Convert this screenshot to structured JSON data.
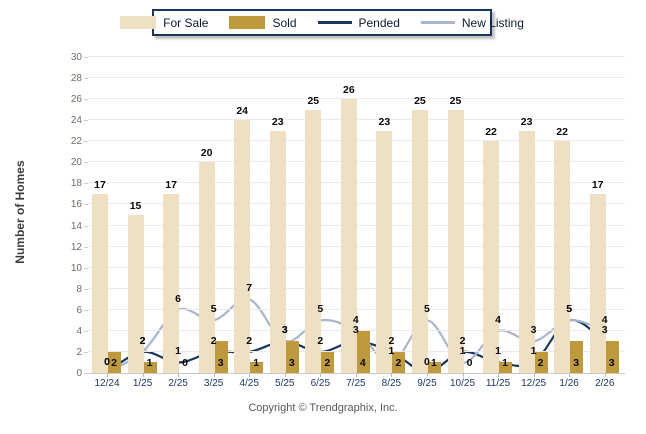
{
  "legend": {
    "items": [
      {
        "label": "For Sale",
        "type": "bar",
        "color": "#EFE0C3"
      },
      {
        "label": "Sold",
        "type": "bar",
        "color": "#BE9A3D"
      },
      {
        "label": "Pended",
        "type": "line",
        "color": "#17375E"
      },
      {
        "label": "New Listing",
        "type": "line",
        "color": "#A9B5CD"
      }
    ]
  },
  "y_axis": {
    "title": "Number of Homes",
    "ticks": [
      0,
      2,
      4,
      6,
      8,
      10,
      12,
      14,
      16,
      18,
      20,
      22,
      24,
      26,
      28,
      30
    ],
    "min": 0,
    "max": 30
  },
  "footer": {
    "copyright": "Copyright © Trendgraphix, Inc."
  },
  "chart_data": {
    "type": "bar",
    "subtype": "grouped-bars-with-smoothed-lines",
    "categories": [
      "12/24",
      "1/25",
      "2/25",
      "3/25",
      "4/25",
      "5/25",
      "6/25",
      "7/25",
      "8/25",
      "9/25",
      "10/25",
      "11/25",
      "12/25",
      "1/26",
      "2/26"
    ],
    "series": [
      {
        "name": "For Sale",
        "type": "bar",
        "color": "#EFE0C3",
        "values": [
          17,
          15,
          17,
          20,
          24,
          23,
          25,
          26,
          23,
          25,
          25,
          22,
          23,
          22,
          17
        ]
      },
      {
        "name": "Sold",
        "type": "bar",
        "color": "#BE9A3D",
        "values": [
          2,
          1,
          0,
          3,
          1,
          3,
          2,
          4,
          2,
          1,
          0,
          1,
          2,
          3,
          3
        ]
      },
      {
        "name": "Pended",
        "type": "line",
        "color": "#17375E",
        "values": [
          0,
          2,
          1,
          2,
          2,
          3,
          2,
          3,
          2,
          0,
          2,
          1,
          1,
          5,
          3
        ]
      },
      {
        "name": "New Listing",
        "type": "line",
        "color": "#A9B5CD",
        "values": [
          0,
          2,
          6,
          5,
          7,
          3,
          5,
          4,
          1,
          5,
          1,
          4,
          3,
          5,
          4
        ]
      }
    ],
    "title": "",
    "xlabel": "",
    "ylabel": "Number of Homes",
    "ylim": [
      0,
      30
    ],
    "grid": true,
    "legend_position": "top"
  }
}
